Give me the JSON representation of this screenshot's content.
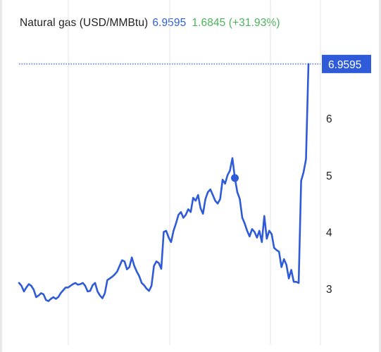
{
  "header": {
    "instrument": "Natural gas (USD/MMBtu)",
    "price": "6.9595",
    "change": "1.6845 (+31.93%)"
  },
  "colors": {
    "line": "#2f5bd8",
    "price_tag": "#2f5bd8",
    "change_positive": "#4bb35a",
    "grid": "#e6e6e6"
  },
  "chart_data": {
    "type": "line",
    "title": "Natural gas (USD/MMBtu)",
    "xlabel": "",
    "ylabel": "",
    "ylim": [
      2.3,
      7.0
    ],
    "y_ticks": [
      3,
      4,
      5,
      6
    ],
    "y_tick_labels": [
      "3",
      "4",
      "5",
      "6"
    ],
    "current_value": 6.9595,
    "current_value_label": "6.9595",
    "marker_index": 88,
    "x_axis_labels": "not shown",
    "grid": "vertical",
    "series": [
      {
        "values": [
          3.1,
          3.05,
          2.95,
          3.02,
          3.08,
          3.05,
          2.98,
          2.85,
          2.88,
          2.92,
          2.9,
          2.8,
          2.78,
          2.82,
          2.85,
          2.82,
          2.85,
          2.92,
          2.97,
          3.02,
          3.02,
          3.05,
          3.08,
          3.1,
          3.07,
          3.08,
          3.1,
          3.05,
          2.95,
          2.96,
          3.06,
          3.1,
          2.95,
          2.88,
          2.83,
          2.92,
          3.15,
          3.18,
          3.21,
          3.25,
          3.3,
          3.4,
          3.5,
          3.48,
          3.34,
          3.38,
          3.55,
          3.4,
          3.3,
          3.22,
          3.1,
          3.06,
          3.0,
          2.96,
          3.05,
          3.4,
          3.48,
          3.45,
          3.35,
          4.0,
          4.02,
          3.9,
          3.82,
          4.02,
          4.15,
          4.3,
          4.35,
          4.25,
          4.3,
          4.4,
          4.35,
          4.6,
          4.55,
          4.65,
          4.42,
          4.32,
          4.58,
          4.7,
          4.75,
          4.65,
          4.55,
          4.5,
          4.58,
          4.92,
          4.85,
          5.0,
          5.08,
          5.3,
          4.95,
          4.7,
          4.58,
          4.25,
          4.15,
          4.02,
          3.92,
          4.05,
          4.0,
          3.9,
          4.02,
          3.82,
          4.28,
          3.88,
          4.02,
          3.96,
          3.72,
          3.68,
          3.65,
          3.38,
          3.52,
          3.42,
          3.18,
          3.33,
          3.12,
          3.12,
          3.1,
          4.9,
          5.05,
          5.28,
          6.9595
        ]
      }
    ]
  }
}
